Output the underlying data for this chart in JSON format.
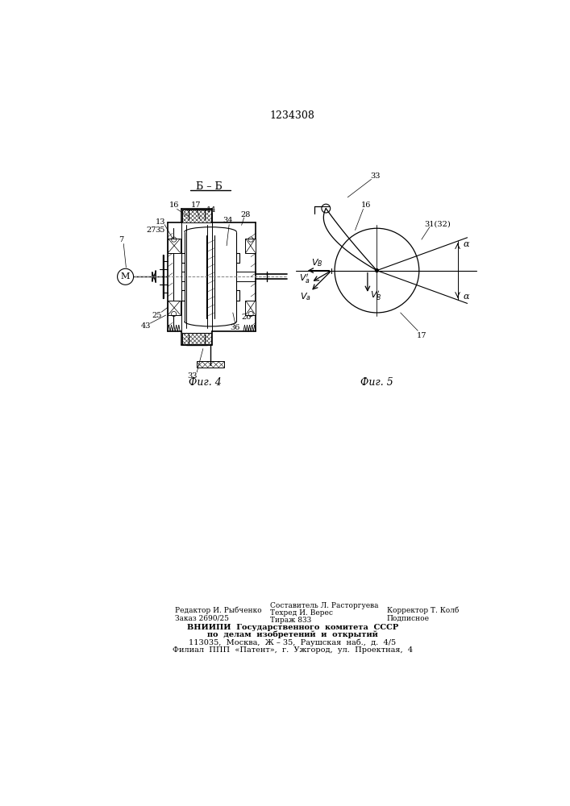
{
  "patent_number": "1234308",
  "background_color": "#ffffff",
  "fig4_label": "Фиг. 4",
  "fig5_label": "Фиг. 5",
  "section_label": "Б – Б"
}
